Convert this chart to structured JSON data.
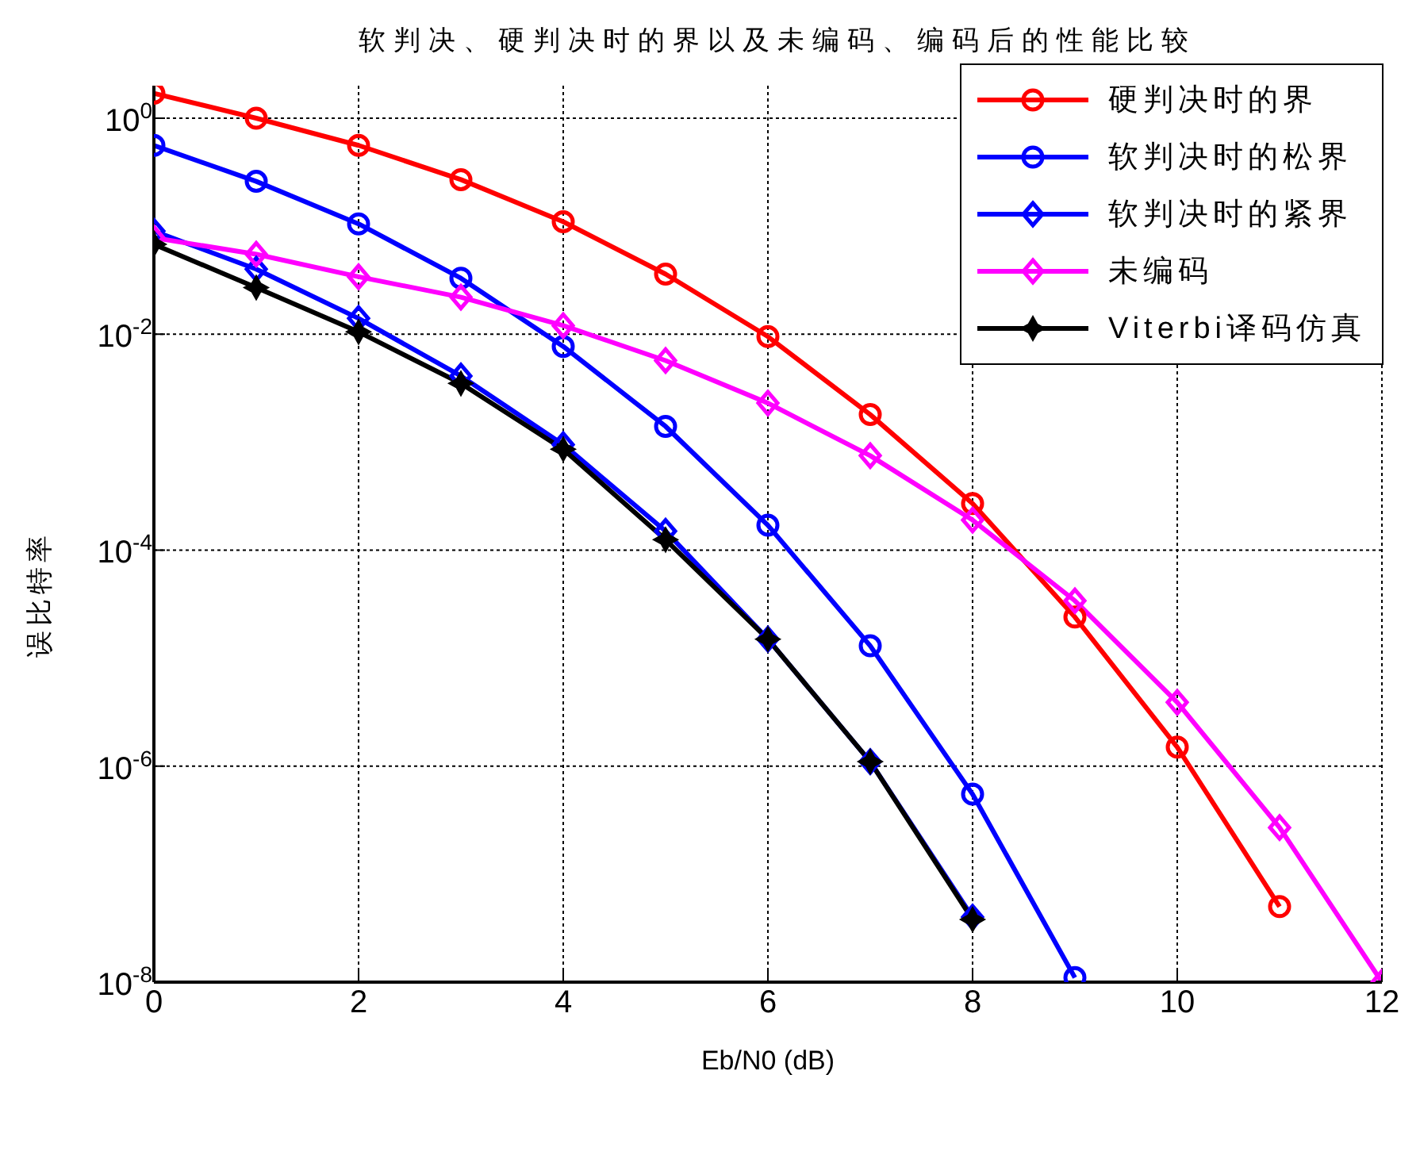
{
  "chart_data": {
    "type": "line",
    "title": "软判决、硬判决时的界以及未编码、编码后的性能比较",
    "xlabel": "Eb/N0 (dB)",
    "ylabel": "误比特率",
    "x": [
      0,
      1,
      2,
      3,
      4,
      5,
      6,
      7,
      8,
      9,
      10,
      11,
      12
    ],
    "series": [
      {
        "name": "硬判决时的界",
        "color": "#ff0000",
        "marker": "circle",
        "values": [
          1.7,
          1.0,
          0.56,
          0.27,
          0.11,
          0.036,
          0.0095,
          0.0018,
          0.00027,
          2.4e-05,
          1.5e-06,
          5e-08,
          null
        ]
      },
      {
        "name": "软判决时的松界",
        "color": "#0000ff",
        "marker": "circle",
        "values": [
          0.56,
          0.26,
          0.105,
          0.033,
          0.0077,
          0.0014,
          0.00017,
          1.3e-05,
          5.5e-07,
          1.1e-08,
          null,
          null,
          null
        ]
      },
      {
        "name": "软判决时的紧界",
        "color": "#0000ff",
        "marker": "diamond",
        "values": [
          0.09,
          0.04,
          0.014,
          0.0041,
          0.00095,
          0.00015,
          1.5e-05,
          1.1e-06,
          4e-08,
          null,
          null,
          null,
          null
        ]
      },
      {
        "name": "未编码",
        "color": "#ff00ff",
        "marker": "diamond",
        "values": [
          0.078,
          0.055,
          0.034,
          0.022,
          0.012,
          0.0057,
          0.0023,
          0.00075,
          0.00019,
          3.4e-05,
          3.9e-06,
          2.7e-07,
          1e-08
        ]
      },
      {
        "name": "Viterbi译码仿真",
        "color": "#000000",
        "marker": "star",
        "values": [
          0.068,
          0.027,
          0.0105,
          0.0035,
          0.00086,
          0.000125,
          1.5e-05,
          1.1e-06,
          3.8e-08,
          null,
          null,
          null,
          null
        ]
      }
    ],
    "log": "y",
    "xlim": [
      0,
      12
    ],
    "xticks": [
      0,
      2,
      4,
      6,
      8,
      10,
      12
    ],
    "ylim": [
      1e-08,
      2
    ],
    "yticks": [
      {
        "value": 1,
        "label": "10$^{0}$"
      },
      {
        "value": 0.01,
        "label": "10$^{-2}$"
      },
      {
        "value": 0.0001,
        "label": "10$^{-4}$"
      },
      {
        "value": 1e-06,
        "label": "10$^{-6}$"
      },
      {
        "value": 1e-08,
        "label": "10$^{-8}$"
      }
    ],
    "grid": true,
    "legend": "top right",
    "line_style": "solid"
  }
}
